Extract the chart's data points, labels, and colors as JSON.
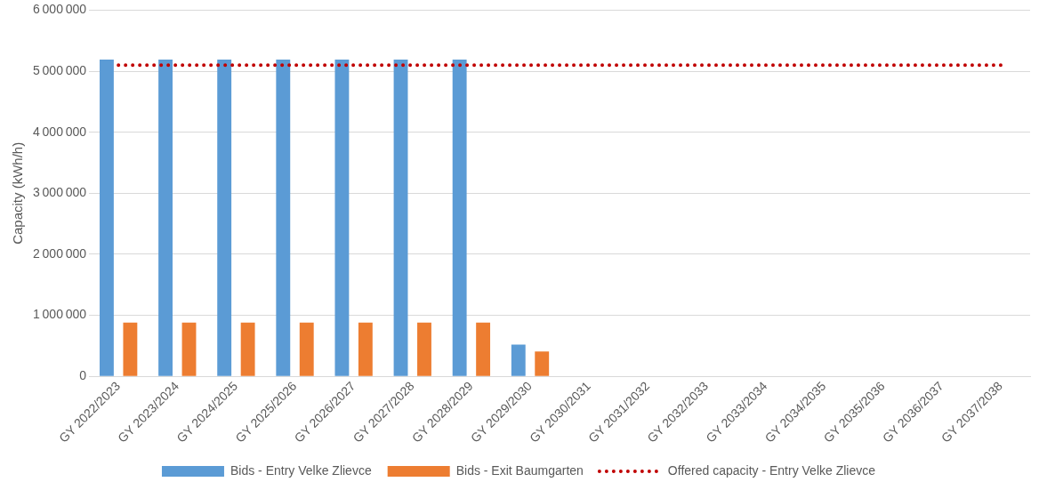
{
  "chart_data": {
    "type": "bar",
    "ylabel": "Capacity (kWh/h)",
    "categories": [
      "GY 2022/2023",
      "GY 2023/2024",
      "GY 2024/2025",
      "GY 2025/2026",
      "GY 2026/2027",
      "GY 2027/2028",
      "GY 2028/2029",
      "GY 2029/2030",
      "GY 2030/2031",
      "GY 2031/2032",
      "GY 2032/2033",
      "GY 2033/2034",
      "GY 2034/2035",
      "GY 2035/2036",
      "GY 2036/2037",
      "GY 2037/2038"
    ],
    "series": [
      {
        "name": "Bids - Entry Velke Zlievce",
        "color": "#5b9bd5",
        "values": [
          5190000,
          5190000,
          5190000,
          5190000,
          5190000,
          5190000,
          5190000,
          520000,
          0,
          0,
          0,
          0,
          0,
          0,
          0,
          0
        ]
      },
      {
        "name": "Bids - Exit Baumgarten",
        "color": "#ed7d31",
        "values": [
          880000,
          880000,
          880000,
          880000,
          880000,
          880000,
          880000,
          410000,
          0,
          0,
          0,
          0,
          0,
          0,
          0,
          0
        ]
      },
      {
        "name": "Offered capacity - Entry Velke Zlievce",
        "type": "line",
        "color": "#c00000",
        "line_style": "dotted",
        "marker": "none",
        "values": [
          5100000,
          5100000,
          5100000,
          5100000,
          5100000,
          5100000,
          5100000,
          5100000,
          5100000,
          5100000,
          5100000,
          5100000,
          5100000,
          5100000,
          5100000,
          5100000
        ]
      }
    ],
    "ylim": [
      0,
      6000000
    ],
    "yticks": [
      0,
      1000000,
      2000000,
      3000000,
      4000000,
      5000000,
      6000000
    ],
    "grid": "y",
    "legend": "bottom"
  }
}
